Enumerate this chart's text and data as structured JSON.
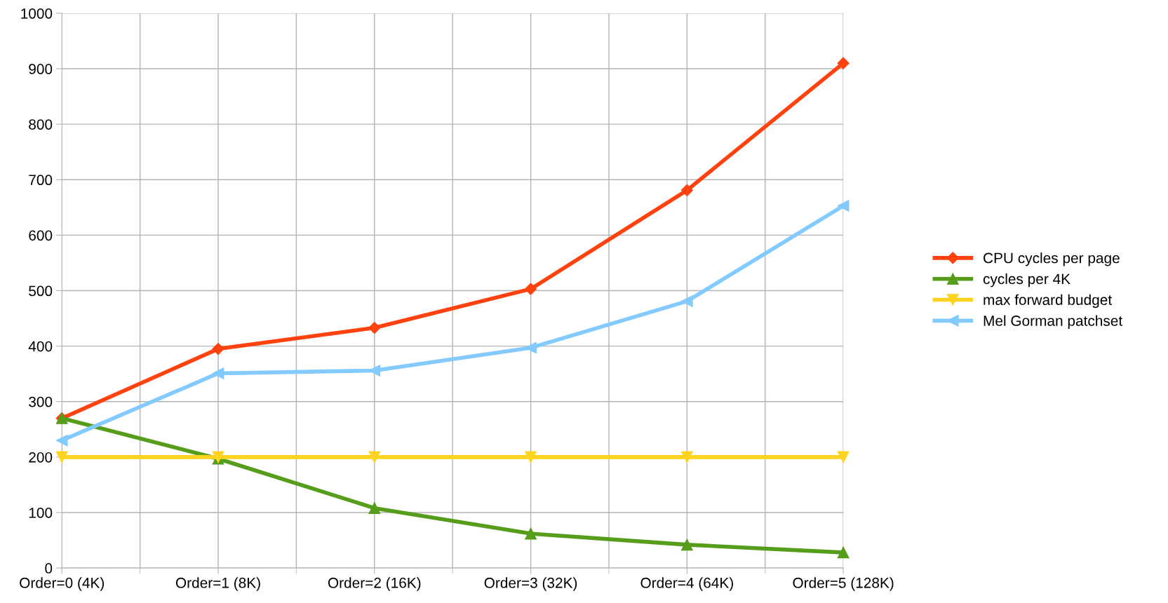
{
  "chart_data": {
    "type": "line",
    "categories": [
      "Order=0 (4K)",
      "Order=1 (8K)",
      "Order=2 (16K)",
      "Order=3 (32K)",
      "Order=4 (64K)",
      "Order=5 (128K)"
    ],
    "series": [
      {
        "name": "CPU cycles per page",
        "color": "#ff420e",
        "marker": "diamond",
        "values": [
          270,
          395,
          433,
          503,
          681,
          910
        ]
      },
      {
        "name": "cycles per 4K",
        "color": "#579d1c",
        "marker": "triangle",
        "values": [
          270,
          197,
          108,
          62,
          42,
          28
        ]
      },
      {
        "name": "max forward budget",
        "color": "#ffd320",
        "marker": "triangle_down",
        "values": [
          200,
          200,
          200,
          200,
          200,
          200
        ]
      },
      {
        "name": "Mel Gorman patchset",
        "color": "#83caff",
        "marker": "triangle_left",
        "values": [
          230,
          351,
          356,
          397,
          481,
          653
        ]
      }
    ],
    "ylim": [
      0,
      1000
    ],
    "yticks": [
      0,
      100,
      200,
      300,
      400,
      500,
      600,
      700,
      800,
      900,
      1000
    ],
    "grid": true,
    "legend": "right",
    "line_style": "solid"
  }
}
